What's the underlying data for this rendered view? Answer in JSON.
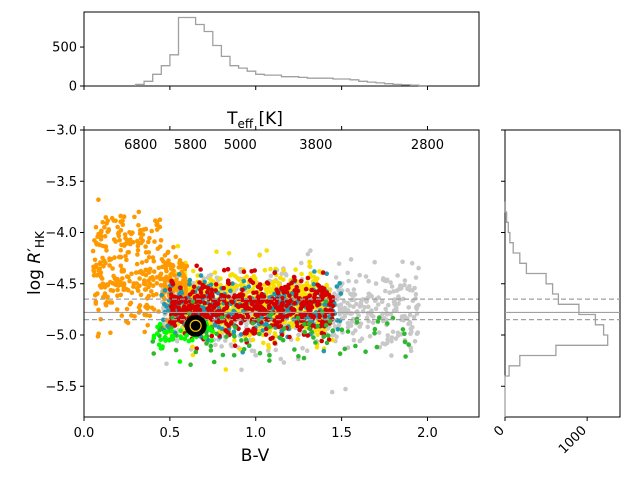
{
  "chart_data": [
    {
      "type": "scatter",
      "xlabel": "B-V",
      "ylabel": "log R'HK",
      "xlim": [
        0.0,
        2.3
      ],
      "ylim": [
        -5.8,
        -3.0
      ],
      "x_ticks": [
        0.0,
        0.5,
        1.0,
        1.5,
        2.0
      ],
      "x_tick_labels": [
        "0.0",
        "0.5",
        "1.0",
        "1.5",
        "2.0"
      ],
      "y_ticks": [
        -5.5,
        -5.0,
        -4.5,
        -4.0,
        -3.5,
        -3.0
      ],
      "y_tick_labels": [
        "−5.5",
        "−5.0",
        "−4.5",
        "−4.0",
        "−3.5",
        "−3.0"
      ],
      "secondary_xlabel": "Teff [K]",
      "secondary_ticks": [
        {
          "bv": 0.33,
          "label": "6800"
        },
        {
          "bv": 0.62,
          "label": "5800"
        },
        {
          "bv": 0.91,
          "label": "5000"
        },
        {
          "bv": 1.35,
          "label": "3800"
        },
        {
          "bv": 2.0,
          "label": "2800"
        }
      ],
      "reference_lines": [
        -4.65,
        -4.78,
        -4.85
      ],
      "highlight_point": {
        "x": 0.65,
        "y": -4.91
      },
      "grid": false,
      "groups": [
        {
          "color": "#c8c8c8",
          "bv_range": [
            0.45,
            1.95
          ],
          "y_center": -4.75,
          "y_spread": 0.35,
          "count": 620
        },
        {
          "color": "#f7e000",
          "bv_range": [
            0.5,
            1.45
          ],
          "y_center": -4.7,
          "y_spread": 0.3,
          "count": 650
        },
        {
          "color": "#ff9900",
          "bv_range": [
            0.05,
            0.6
          ],
          "y_center": -4.5,
          "y_spread": 0.35,
          "count": 380
        },
        {
          "color": "#1e9ab0",
          "bv_range": [
            0.45,
            1.5
          ],
          "y_center": -4.75,
          "y_spread": 0.25,
          "count": 320
        },
        {
          "color": "#d40000",
          "bv_range": [
            0.5,
            1.45
          ],
          "y_center": -4.72,
          "y_spread": 0.25,
          "count": 520
        },
        {
          "color": "#2db82d",
          "bv_range": [
            0.4,
            1.9
          ],
          "y_center": -5.0,
          "y_spread": 0.25,
          "count": 90
        },
        {
          "color": "#00ff00",
          "bv_range": [
            0.4,
            0.75
          ],
          "y_center": -5.0,
          "y_spread": 0.15,
          "count": 50
        }
      ]
    },
    {
      "type": "histogram",
      "orientation": "vertical",
      "y_ticks": [
        0,
        500
      ],
      "y_tick_labels": [
        "0",
        "500"
      ],
      "ylim": [
        0,
        950
      ],
      "bins_bv": [
        0.3,
        0.35,
        0.4,
        0.45,
        0.5,
        0.55,
        0.6,
        0.65,
        0.7,
        0.75,
        0.8,
        0.85,
        0.9,
        0.95,
        1.0,
        1.05,
        1.1,
        1.15,
        1.2,
        1.25,
        1.3,
        1.35,
        1.4,
        1.45,
        1.5,
        1.55,
        1.6,
        1.65,
        1.7,
        1.75,
        1.8,
        1.85,
        1.9,
        1.95,
        2.0
      ],
      "counts": [
        20,
        60,
        150,
        260,
        400,
        880,
        880,
        790,
        700,
        520,
        380,
        260,
        230,
        190,
        150,
        140,
        140,
        120,
        120,
        110,
        100,
        100,
        100,
        90,
        90,
        80,
        60,
        50,
        40,
        30,
        20,
        15,
        10,
        5
      ]
    },
    {
      "type": "histogram",
      "orientation": "horizontal",
      "x_ticks": [
        0,
        1000
      ],
      "x_tick_labels": [
        "0",
        "1000"
      ],
      "xlim": [
        0,
        1400
      ],
      "bins_y": [
        -5.8,
        -5.4,
        -5.3,
        -5.2,
        -5.1,
        -5.0,
        -4.9,
        -4.8,
        -4.7,
        -4.6,
        -4.5,
        -4.4,
        -4.3,
        -4.2,
        -4.1,
        -4.0,
        -3.9,
        -3.8,
        -3.7
      ],
      "counts": [
        0,
        50,
        180,
        620,
        1250,
        1200,
        1100,
        900,
        650,
        580,
        500,
        260,
        180,
        100,
        60,
        40,
        20,
        5
      ],
      "reference_lines": [
        -4.65,
        -4.78,
        -4.85
      ]
    }
  ]
}
